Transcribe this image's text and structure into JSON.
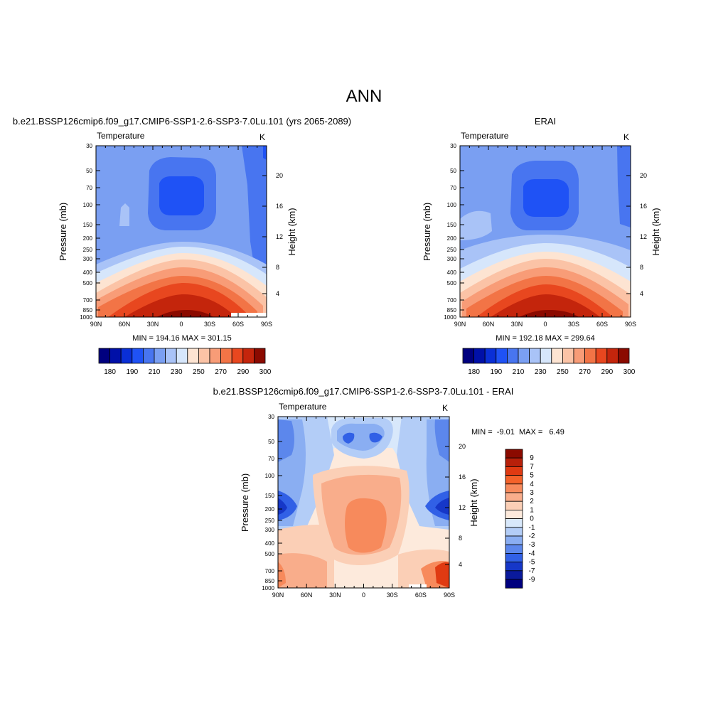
{
  "figure": {
    "season": "ANN",
    "left_title": "b.e21.BSSP126cmip6.f09_g17.CMIP6-SSP1-2.6-SSP3-7.0Lu.101 (yrs 2065-2089)",
    "right_title": "ERAI",
    "diff_title": "b.e21.BSSP126cmip6.f09_g17.CMIP6-SSP1-2.6-SSP3-7.0Lu.101 - ERAI"
  },
  "chart_data": [
    {
      "type": "heatmap",
      "id": "model",
      "variable": "Temperature",
      "units": "K",
      "ylabel": "Pressure (mb)",
      "ylabel_right": "Height (km)",
      "x_ticks": [
        "90N",
        "60N",
        "30N",
        "0",
        "30S",
        "60S",
        "90S"
      ],
      "y_ticks": [
        "30",
        "50",
        "70",
        "100",
        "150",
        "200",
        "250",
        "300",
        "400",
        "500",
        "700",
        "850",
        "1000"
      ],
      "height_ticks": [
        "20",
        "16",
        "12",
        "8",
        "4"
      ],
      "stats_text": "MIN = 194.16  MAX = 301.15",
      "min": 194.16,
      "max": 301.15,
      "colorbar_labels": [
        "180",
        "190",
        "210",
        "230",
        "250",
        "270",
        "290",
        "300"
      ]
    },
    {
      "type": "heatmap",
      "id": "obs",
      "variable": "Temperature",
      "units": "K",
      "ylabel": "Pressure (mb)",
      "ylabel_right": "Height (km)",
      "x_ticks": [
        "90N",
        "60N",
        "30N",
        "0",
        "30S",
        "60S",
        "90S"
      ],
      "y_ticks": [
        "30",
        "50",
        "70",
        "100",
        "150",
        "200",
        "250",
        "300",
        "400",
        "500",
        "700",
        "850",
        "1000"
      ],
      "height_ticks": [
        "20",
        "16",
        "12",
        "8",
        "4"
      ],
      "stats_text": "MIN = 192.18  MAX = 299.64",
      "min": 192.18,
      "max": 299.64,
      "colorbar_labels": [
        "180",
        "190",
        "210",
        "230",
        "250",
        "270",
        "290",
        "300"
      ]
    },
    {
      "type": "heatmap",
      "id": "diff",
      "variable": "Temperature",
      "units": "K",
      "ylabel": "Pressure (mb)",
      "ylabel_right": "Height (km)",
      "x_ticks": [
        "90N",
        "60N",
        "30N",
        "0",
        "30S",
        "60S",
        "90S"
      ],
      "y_ticks": [
        "30",
        "50",
        "70",
        "100",
        "150",
        "200",
        "250",
        "300",
        "400",
        "500",
        "700",
        "850",
        "1000"
      ],
      "height_ticks": [
        "20",
        "16",
        "12",
        "8",
        "4"
      ],
      "stats_text": "MIN =  -9.01  MAX =   6.49",
      "min": -9.01,
      "max": 6.49,
      "colorbar_labels": [
        "9",
        "7",
        "5",
        "4",
        "3",
        "2",
        "1",
        "0",
        "-1",
        "-2",
        "-3",
        "-4",
        "-5",
        "-7",
        "-9"
      ]
    }
  ],
  "colors": {
    "abs_scale": [
      "#00007f",
      "#0010a8",
      "#0a2fd6",
      "#1f52f5",
      "#4875f0",
      "#7a9ff2",
      "#a9c3f7",
      "#d6e6fb",
      "#fde4d2",
      "#fbc3a6",
      "#f89c77",
      "#f27446",
      "#e8471f",
      "#c4250c",
      "#8b0a00"
    ],
    "diff_scale": [
      "#8b0a00",
      "#b8200a",
      "#e03a12",
      "#f4622a",
      "#f78a5c",
      "#f9ad8b",
      "#fbcfb6",
      "#fdeadc",
      "#d8e8fb",
      "#b3cdf7",
      "#8aaef2",
      "#5c87ec",
      "#3160e6",
      "#1637c8",
      "#0a1a9c",
      "#00007f"
    ]
  }
}
